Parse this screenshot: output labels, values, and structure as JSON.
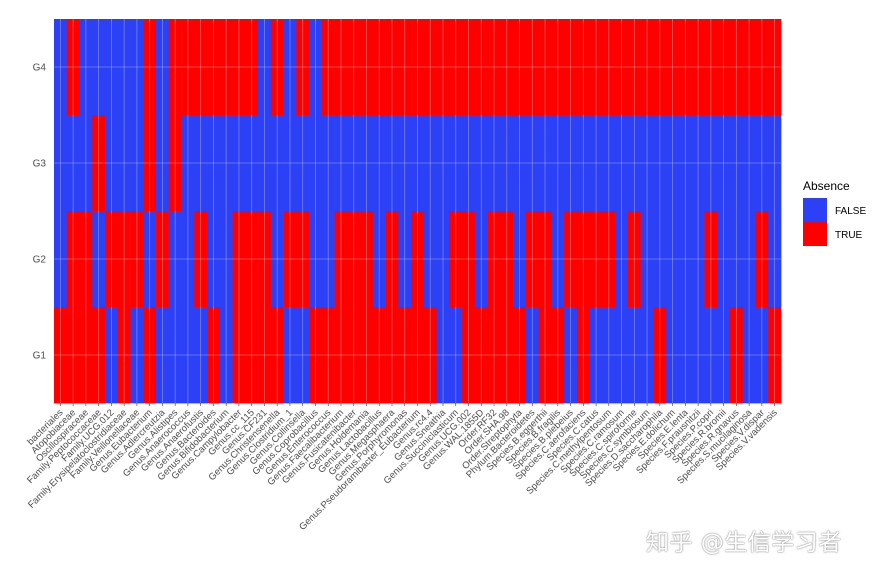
{
  "chart_data": {
    "type": "heatmap",
    "rows": [
      "G4",
      "G3",
      "G2",
      "G1"
    ],
    "columns": [
      "Order.Coriobacteriales",
      "Family.Atopobiaceae",
      "Family.Oscillospiraceae",
      "Family.Peptococcaceae",
      "Family.UCG.012",
      "Family.Erysipelatoclostridiaceae",
      "Family.Veillonellaceae",
      "Genus.Eubacterium",
      "Genus.Adlercreutzia",
      "Genus.Alistipes",
      "Genus.Anaerococcus",
      "Genus.Anaerofustis",
      "Genus.Bacteroides",
      "Genus.Bifidobacterium",
      "Genus.Campylobacter",
      "Genus.cc_115",
      "Genus.CF231",
      "Genus.Christensenella",
      "Genus.Clostridium_1",
      "Genus.Collinsella",
      "Genus.Coprobacillus",
      "Genus.Enterococcus",
      "Genus.Faecalibacterium",
      "Genus.Fusicatenibacter",
      "Genus.Holdemania",
      "Genus.Lactobacillus",
      "Genus.Megasphaera",
      "Genus.Porphyromonas",
      "Genus.Pseudoramibacter_Eubacterium",
      "Genus.rc4.4",
      "Genus.Sneathia",
      "Genus.Succiniclasticum",
      "Genus.UCG.002",
      "Genus.WAL.1855D",
      "Order.RF32",
      "Order.SHA.98",
      "Order.Streptophyta",
      "Phylum.Bacteroidetes",
      "Species.B.eggerthii",
      "Species.B.fragilis",
      "Species.B.plebeius",
      "Species.C.aerofaciens",
      "Species.C.catus",
      "Species.C.methylpentosum",
      "Species.C.ramosum",
      "Species.C.spiroforme",
      "Species.C.symbiosum",
      "Species.D.saccharophila",
      "Species.E.dolichum",
      "Species.E.lenta",
      "Species.F.prausnitzii",
      "Species.P.copri",
      "Species.R.bromii",
      "Species.R.gnavus",
      "Species.S.mucilaginosa",
      "Species.V.dispar",
      "Species.V.vadensis"
    ],
    "x_tick_labels": [
      "bacteriales",
      "Atopobiaceae",
      "Oscillospiraceae",
      "Family.Peptococcaceae",
      "Family.UCG.012",
      "Family.Erysipelatoclostridiaceae",
      "Family.Veillonellaceae",
      "Genus.Eubacterium",
      "Genus.Adlercreutzia",
      "Genus.Alistipes",
      "Genus.Anaerococcus",
      "Genus.Anaerofustis",
      "Genus.Bacteroides",
      "Genus.Bifidobacterium",
      "Genus.Campylobacter",
      "Genus.cc_115",
      "Genus.CF231",
      "Genus.Christensenella",
      "Genus.Clostridium_1",
      "Genus.Collinsella",
      "Genus.Coprobacillus",
      "Genus.Enterococcus",
      "Genus.Faecalibacterium",
      "Genus.Fusicatenibacter",
      "Genus.Holdemania",
      "Genus.Lactobacillus",
      "Genus.Megasphaera",
      "Genus.Porphyromonas",
      "Genus.Pseudoramibacter_Eubacterium",
      "Genus.rc4.4",
      "Genus.Sneathia",
      "Genus.Succiniclasticum",
      "Genus.UCG.002",
      "Genus.WAL.1855D",
      "Order.RF32",
      "Order.SHA.98",
      "Order.Streptophyta",
      "Phylum.Bacteroidetes",
      "Species.B.eggerthii",
      "Species.B.fragilis",
      "Species.B.plebeius",
      "Species.C.aerofaciens",
      "Species.C.catus",
      "Species.C.methylpentosum",
      "Species.C.ramosum",
      "Species.C.spiroforme",
      "Species.C.symbiosum",
      "Species.D.saccharophila",
      "Species.E.dolichum",
      "Species.E.lenta",
      "Species.F.prausnitzii",
      "Species.P.copri",
      "Species.R.bromii",
      "Species.R.gnavus",
      "Species.S.mucilaginosa",
      "Species.V.dispar",
      "Species.V.vadensis"
    ],
    "values": {
      "G4": "FTFFFFFTFTTTTTTTFTFTFTTTTTTTTTTTTTTTTTTTTTTTTTTTTTTTTTTTT",
      "G3": "FFFTFFFTFTFFFFFFFFFFFFFFFFFFFFFFFFFFFFFFFFFFFFFFFFFFFFFFF",
      "G2": "FTTFTTTFTFFTFFTTTFTTFFTTTFTFTFFTTFTTFTTFTTTTFTFFFFFTFFFTF",
      "G1": "TTTTFTFTFFFFTFTTTTFFTTTTTTTTTTFFTTTTTFTTFTFFFFFTFFFFFTFFT"
    },
    "legend": {
      "title": "Absence",
      "position": "right",
      "entries": [
        {
          "code": "F",
          "label": "FALSE",
          "color": "#2c40f5"
        },
        {
          "code": "T",
          "label": "TRUE",
          "color": "#ff0000"
        }
      ]
    },
    "grid": true
  },
  "watermark": "知乎 @生信学习者"
}
